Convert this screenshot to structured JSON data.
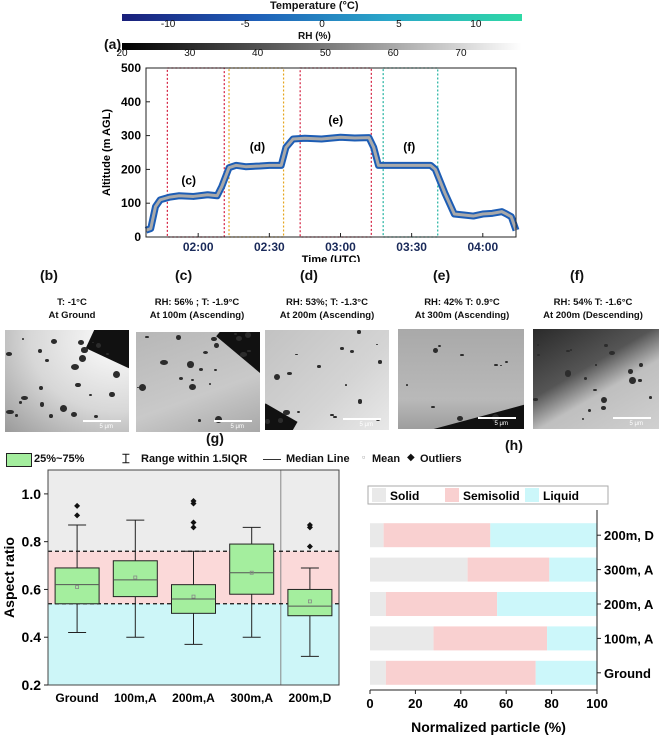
{
  "colorbars": {
    "temperature": {
      "title": "Temperature (°C)",
      "ticks": [
        -10,
        -5,
        0,
        5,
        10
      ],
      "colors": [
        "#1a1f7a",
        "#1f5fb8",
        "#2aa7c9",
        "#2fd9a5"
      ]
    },
    "rh": {
      "title": "RH (%)",
      "ticks": [
        20,
        30,
        40,
        50,
        60,
        70
      ],
      "colors": [
        "#000000",
        "#777777",
        "#ffffff"
      ]
    }
  },
  "panel_labels": {
    "a": "(a)",
    "b": "(b)",
    "c": "(c)",
    "d": "(d)",
    "e": "(e)",
    "f": "(f)",
    "g": "(g)",
    "h": "(h)"
  },
  "micro_panels": [
    {
      "label": "(b)",
      "line1": "T: -1°C",
      "line2": "At Ground",
      "scale": "5 μm"
    },
    {
      "label": "(c)",
      "line1": "RH: 56% ; T: -1.9°C",
      "line2": "At 100m (Ascending)",
      "scale": "5 μm"
    },
    {
      "label": "(d)",
      "line1": "RH: 53%; T: -1.3°C",
      "line2": "At 200m (Ascending)",
      "scale": "5 μm"
    },
    {
      "label": "(e)",
      "line1": "RH: 42% T: 0.9°C",
      "line2": "At 300m (Ascending)",
      "scale": "5 μm"
    },
    {
      "label": "(f)",
      "line1": "RH: 54% T: -1.6°C",
      "line2": "At 200m (Descending)",
      "scale": "5 μm"
    }
  ],
  "legend_g": {
    "box": "25%~75%",
    "whisker": "Range within 1.5IQR",
    "median": "Median Line",
    "mean": "Mean",
    "outliers": "Outliers"
  },
  "chart_data": [
    {
      "type": "line",
      "id": "a",
      "xlabel": "Time (UTC)",
      "ylabel": "Altitude (m AGL)",
      "ylim": [
        0,
        500
      ],
      "yticks": [
        0,
        100,
        200,
        300,
        400,
        500
      ],
      "xticks": [
        "02:00",
        "02:30",
        "03:00",
        "03:30",
        "04:00"
      ],
      "xlim": [
        "01:38",
        "04:14"
      ],
      "series": [
        {
          "x": [
            "01:38",
            "01:40",
            "01:42",
            "01:44",
            "01:48",
            "01:52",
            "01:58",
            "02:04",
            "02:08",
            "02:10",
            "02:13",
            "02:16",
            "02:20",
            "02:26",
            "02:30",
            "02:35",
            "02:37",
            "02:40",
            "02:45",
            "02:52",
            "03:00",
            "03:06",
            "03:12",
            "03:14",
            "03:16",
            "03:22",
            "03:30",
            "03:38",
            "03:40",
            "03:44",
            "03:48",
            "03:52",
            "03:56",
            "04:00",
            "04:04",
            "04:08",
            "04:10",
            "04:12",
            "04:14"
          ],
          "y": [
            20,
            25,
            90,
            110,
            118,
            122,
            120,
            125,
            122,
            150,
            205,
            212,
            208,
            210,
            212,
            212,
            265,
            290,
            292,
            290,
            295,
            293,
            294,
            265,
            212,
            212,
            212,
            212,
            200,
            130,
            68,
            65,
            62,
            68,
            70,
            75,
            68,
            60,
            20
          ]
        }
      ],
      "annotations": [
        {
          "text": "(c)",
          "x": "01:56",
          "y": 155
        },
        {
          "text": "(d)",
          "x": "02:25",
          "y": 255
        },
        {
          "text": "(e)",
          "x": "02:58",
          "y": 335
        },
        {
          "text": "(f)",
          "x": "03:29",
          "y": 255
        }
      ],
      "regions": [
        {
          "from": "01:47",
          "to": "02:11",
          "color": "#d42040"
        },
        {
          "from": "02:13",
          "to": "02:36",
          "color": "#e6a51e"
        },
        {
          "from": "02:43",
          "to": "03:13",
          "color": "#d42040"
        },
        {
          "from": "03:18",
          "to": "03:41",
          "color": "#21b3a0"
        }
      ]
    },
    {
      "type": "box",
      "id": "g",
      "ylabel": "Aspect ratio",
      "ylim": [
        0.2,
        1.1
      ],
      "yticks": [
        0.2,
        0.4,
        0.6,
        0.8,
        1.0
      ],
      "categories": [
        "Ground",
        "100m,A",
        "200m,A",
        "300m,A",
        "200m,D"
      ],
      "boxes": [
        {
          "q1": 0.54,
          "median": 0.62,
          "q3": 0.69,
          "mean": 0.61,
          "lo": 0.42,
          "hi": 0.87,
          "outliers": [
            0.91,
            0.95
          ]
        },
        {
          "q1": 0.57,
          "median": 0.64,
          "q3": 0.72,
          "mean": 0.65,
          "lo": 0.4,
          "hi": 0.89,
          "outliers": []
        },
        {
          "q1": 0.5,
          "median": 0.56,
          "q3": 0.62,
          "mean": 0.57,
          "lo": 0.37,
          "hi": 0.76,
          "outliers": [
            0.86,
            0.88,
            0.96,
            0.97
          ]
        },
        {
          "q1": 0.58,
          "median": 0.67,
          "q3": 0.79,
          "mean": 0.67,
          "lo": 0.4,
          "hi": 0.86,
          "outliers": []
        },
        {
          "q1": 0.49,
          "median": 0.53,
          "q3": 0.6,
          "mean": 0.55,
          "lo": 0.32,
          "hi": 0.69,
          "outliers": [
            0.78,
            0.86,
            0.87
          ]
        }
      ],
      "bands": [
        {
          "from": 0.2,
          "to": 0.54,
          "color": "#cdf6f8"
        },
        {
          "from": 0.54,
          "to": 0.76,
          "color": "#fbd9d9"
        },
        {
          "from": 0.76,
          "to": 1.1,
          "color": "#ececec"
        }
      ],
      "dashed_lines": [
        0.54,
        0.76
      ]
    },
    {
      "type": "stacked_bar_horizontal",
      "id": "h",
      "xlabel": "Normalized particle (%)",
      "xlim": [
        0,
        100
      ],
      "xticks": [
        0,
        20,
        40,
        60,
        80,
        100
      ],
      "categories": [
        "Ground",
        "100m, A",
        "200m, A",
        "300m, A",
        "200m, D"
      ],
      "series": [
        {
          "name": "Solid",
          "color": "#e9e9e9",
          "values": [
            7,
            28,
            7,
            43,
            6
          ]
        },
        {
          "name": "Semisolid",
          "color": "#f9d0d0",
          "values": [
            66,
            50,
            49,
            36,
            47
          ]
        },
        {
          "name": "Liquid",
          "color": "#ccf7fa",
          "values": [
            27,
            22,
            44,
            21,
            47
          ]
        }
      ]
    }
  ]
}
